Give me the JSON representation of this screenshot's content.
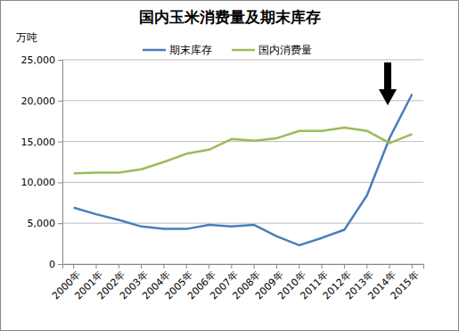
{
  "chart_data": {
    "type": "line",
    "title": "国内玉米消费量及期末库存",
    "ylabel": "万吨",
    "categories": [
      "2000年",
      "2001年",
      "2002年",
      "2003年",
      "2004年",
      "2005年",
      "2006年",
      "2007年",
      "2008年",
      "2009年",
      "2010年",
      "2011年",
      "2012年",
      "2013年",
      "2014年",
      "2015年"
    ],
    "series": [
      {
        "name": "期末库存",
        "color": "#4a7ebb",
        "values": [
          6900,
          6100,
          5400,
          4600,
          4300,
          4300,
          4800,
          4600,
          4800,
          3400,
          2300,
          3200,
          4200,
          8400,
          15400,
          20800
        ]
      },
      {
        "name": "国内消费量",
        "color": "#9bbb59",
        "values": [
          11100,
          11200,
          11200,
          11600,
          12500,
          13500,
          14000,
          15300,
          15100,
          15400,
          16300,
          16300,
          16700,
          16300,
          14800,
          15900
        ]
      }
    ],
    "ylim": [
      0,
      25000
    ],
    "yticks": [
      0,
      {
        "value": 5000,
        "label": "5,000"
      },
      {
        "value": 10000,
        "label": "10,000"
      },
      {
        "value": 15000,
        "label": "15,000"
      },
      {
        "value": 20000,
        "label": "20,000"
      },
      {
        "value": 25000,
        "label": "25,000"
      }
    ],
    "grid": true,
    "legend": "top"
  }
}
